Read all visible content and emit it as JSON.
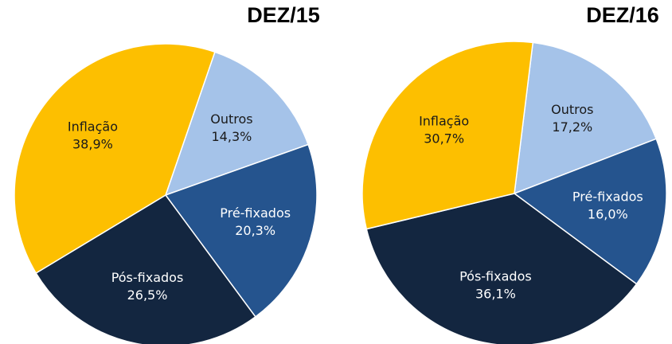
{
  "chart_data": [
    {
      "type": "pie",
      "title": "DEZ/15",
      "categories": [
        "Outros",
        "Pré-fixados",
        "Pós-fixados",
        "Inflação"
      ],
      "values": [
        14.3,
        20.3,
        26.5,
        38.9
      ],
      "value_labels": [
        "14,3%",
        "20,3%",
        "26,5%",
        "38,9%"
      ],
      "colors": [
        "#a5c3e9",
        "#25548e",
        "#132640",
        "#fdbf00"
      ]
    },
    {
      "type": "pie",
      "title": "DEZ/16",
      "categories": [
        "Outros",
        "Pré-fixados",
        "Pós-fixados",
        "Inflação"
      ],
      "values": [
        17.2,
        16.0,
        36.1,
        30.7
      ],
      "value_labels": [
        "17,2%",
        "16,0%",
        "36,1%",
        "30,7%"
      ],
      "colors": [
        "#a5c3e9",
        "#25548e",
        "#132640",
        "#fdbf00"
      ]
    }
  ]
}
